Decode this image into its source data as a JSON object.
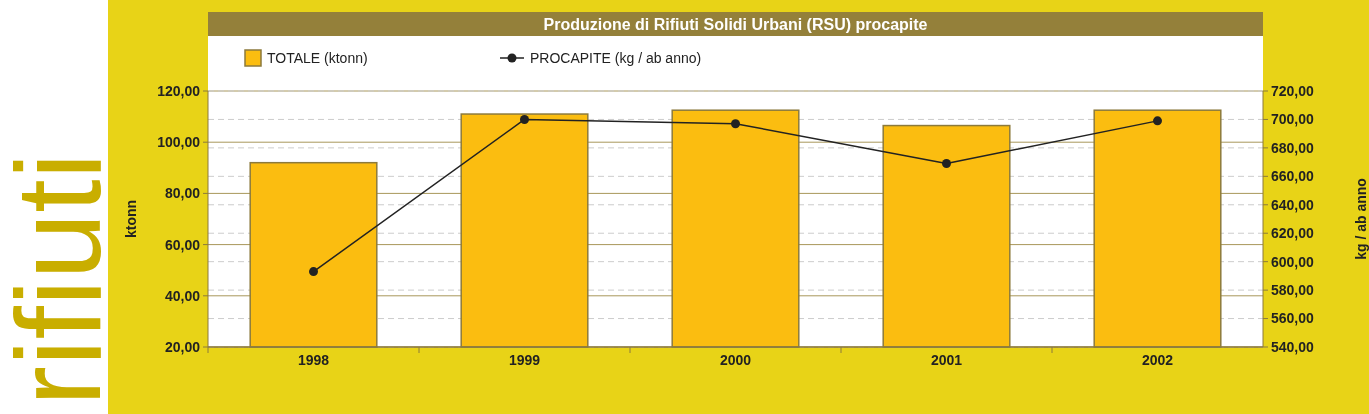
{
  "chart_data": {
    "type": "bar",
    "title": "Produzione di Rifiuti Solidi Urbani (RSU) procapite",
    "categories": [
      "1998",
      "1999",
      "2000",
      "2001",
      "2002"
    ],
    "series": [
      {
        "name": "TOTALE (ktonn)",
        "color": "#fbbd10",
        "values": [
          92,
          111,
          112.5,
          106.5,
          112.5
        ]
      },
      {
        "name": "PROCAPITE (kg / ab anno)",
        "type": "line",
        "axis": "y2",
        "color": "#222222",
        "marker": "circle",
        "values": [
          593,
          700,
          697,
          669,
          699
        ]
      }
    ],
    "ylabel": "ktonn",
    "y2label": "kg / ab anno",
    "ylim": [
      20,
      120
    ],
    "yticks": [
      {
        "value": 20,
        "label": "20,00"
      },
      {
        "value": 40,
        "label": "40,00"
      },
      {
        "value": 60,
        "label": "60,00"
      },
      {
        "value": 80,
        "label": "80,00"
      },
      {
        "value": 100,
        "label": "100,00"
      },
      {
        "value": 120,
        "label": "120,00"
      }
    ],
    "y2lim": [
      540,
      720
    ],
    "y2ticks": [
      {
        "value": 540,
        "label": "540,00"
      },
      {
        "value": 560,
        "label": "560,00"
      },
      {
        "value": 580,
        "label": "580,00"
      },
      {
        "value": 600,
        "label": "600,00"
      },
      {
        "value": 620,
        "label": "620,00"
      },
      {
        "value": 640,
        "label": "640,00"
      },
      {
        "value": 660,
        "label": "660,00"
      },
      {
        "value": 680,
        "label": "680,00"
      },
      {
        "value": 700,
        "label": "700,00"
      },
      {
        "value": 720,
        "label": "720,00"
      }
    ],
    "grid": true,
    "legend": "top left",
    "annotations": [
      "rifiuti"
    ]
  }
}
